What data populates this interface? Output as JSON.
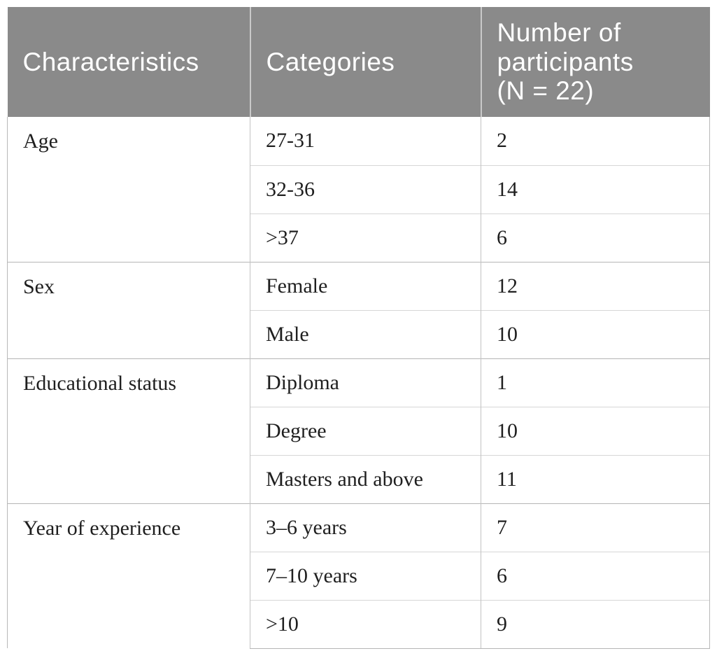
{
  "table": {
    "header": {
      "characteristics": "Characteristics",
      "categories": "Categories",
      "participants": "Number of\nparticipants\n(N = 22)"
    },
    "groups": [
      {
        "label": "Age",
        "rows": [
          {
            "category": "27-31",
            "count": "2"
          },
          {
            "category": "32-36",
            "count": "14"
          },
          {
            "category": ">37",
            "count": "6"
          }
        ]
      },
      {
        "label": "Sex",
        "rows": [
          {
            "category": "Female",
            "count": "12"
          },
          {
            "category": "Male",
            "count": "10"
          }
        ]
      },
      {
        "label": "Educational status",
        "rows": [
          {
            "category": "Diploma",
            "count": "1"
          },
          {
            "category": "Degree",
            "count": "10"
          },
          {
            "category": "Masters and above",
            "count": "11"
          }
        ]
      },
      {
        "label": "Year of experience",
        "rows": [
          {
            "category": "3–6 years",
            "count": "7"
          },
          {
            "category": "7–10 years",
            "count": "6"
          },
          {
            "category": ">10",
            "count": "9"
          }
        ]
      }
    ],
    "total_participants": "22",
    "colors": {
      "header_bg": "#8a8a8a",
      "header_text": "#ffffff",
      "body_text": "#1f1f1f",
      "sub_line": "#d6d6d6",
      "group_line": "#b5b5b5",
      "column_line": "#c3c3c3"
    }
  }
}
